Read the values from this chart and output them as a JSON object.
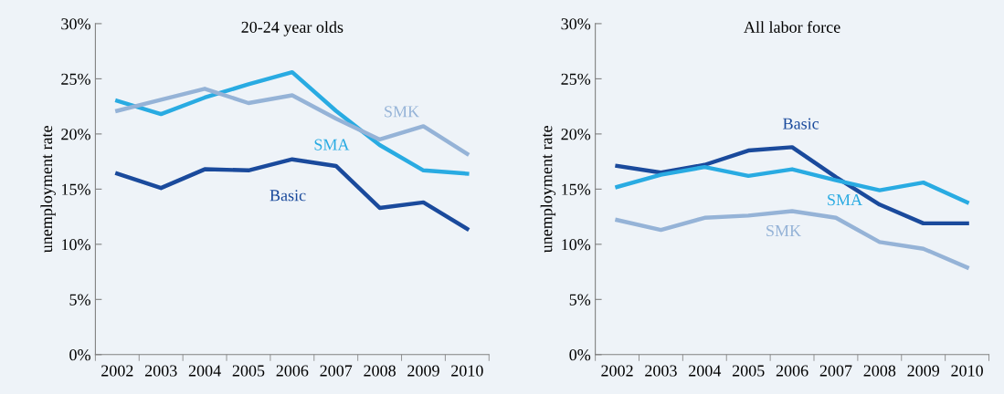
{
  "chart_data": [
    {
      "type": "line",
      "title": "20-24 year olds",
      "ylabel": "unemployment rate",
      "categories": [
        "2002",
        "2003",
        "2004",
        "2005",
        "2006",
        "2007",
        "2008",
        "2009",
        "2010"
      ],
      "ylim": [
        0,
        30
      ],
      "yticks": [
        {
          "value": 0,
          "label": "0%"
        },
        {
          "value": 5,
          "label": "5%"
        },
        {
          "value": 10,
          "label": "10%"
        },
        {
          "value": 15,
          "label": "15%"
        },
        {
          "value": 20,
          "label": "20%"
        },
        {
          "value": 25,
          "label": "25%"
        },
        {
          "value": 30,
          "label": "30%"
        }
      ],
      "grid": false,
      "legend": false,
      "marker": "none",
      "line_style": "solid",
      "series": [
        {
          "name": "Basic",
          "color": "#1a4a9c",
          "values": [
            16.4,
            15.1,
            16.8,
            16.7,
            17.7,
            17.1,
            13.3,
            13.8,
            11.4
          ]
        },
        {
          "name": "SMA",
          "color": "#29abe2",
          "values": [
            23.0,
            21.8,
            23.3,
            24.5,
            25.6,
            22.1,
            19.0,
            16.7,
            16.4
          ]
        },
        {
          "name": "SMK",
          "color": "#95b3d7",
          "values": [
            22.1,
            23.1,
            24.1,
            22.8,
            23.5,
            21.4,
            19.5,
            20.7,
            18.2
          ]
        }
      ]
    },
    {
      "type": "line",
      "title": "All labor force",
      "ylabel": "unemployment rate",
      "categories": [
        "2002",
        "2003",
        "2004",
        "2005",
        "2006",
        "2007",
        "2008",
        "2009",
        "2010"
      ],
      "ylim": [
        0,
        30
      ],
      "yticks": [
        {
          "value": 0,
          "label": "0%"
        },
        {
          "value": 5,
          "label": "5%"
        },
        {
          "value": 10,
          "label": "10%"
        },
        {
          "value": 15,
          "label": "15%"
        },
        {
          "value": 20,
          "label": "20%"
        },
        {
          "value": 25,
          "label": "25%"
        },
        {
          "value": 30,
          "label": "30%"
        }
      ],
      "grid": false,
      "legend": false,
      "marker": "none",
      "line_style": "solid",
      "series": [
        {
          "name": "Basic",
          "color": "#1a4a9c",
          "values": [
            17.1,
            16.5,
            17.2,
            18.5,
            18.8,
            16.1,
            13.6,
            11.9,
            11.9
          ]
        },
        {
          "name": "SMA",
          "color": "#29abe2",
          "values": [
            15.2,
            16.3,
            17.0,
            16.2,
            16.8,
            15.8,
            14.9,
            15.6,
            13.8
          ]
        },
        {
          "name": "SMK",
          "color": "#95b3d7",
          "values": [
            12.2,
            11.3,
            12.4,
            12.6,
            13.0,
            12.4,
            10.2,
            9.6,
            7.9
          ]
        }
      ]
    }
  ]
}
